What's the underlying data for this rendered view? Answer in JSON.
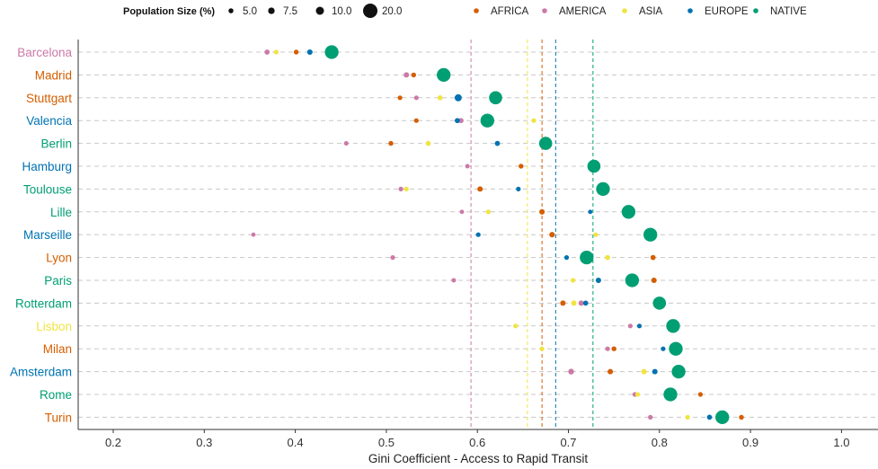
{
  "chart_data": {
    "type": "scatter",
    "xlabel": "Gini Coefficient - Access to Rapid Transit",
    "x_ticks": [
      "0.2",
      "0.3",
      "0.4",
      "0.5",
      "0.6",
      "0.7",
      "0.8",
      "0.9",
      "1.0"
    ],
    "xlim": [
      0.16,
      1.04
    ],
    "legend_position": "top",
    "size_legend": {
      "title": "Population Size (%)",
      "entries": [
        {
          "label": "5.0",
          "value": 5.0
        },
        {
          "label": "7.5",
          "value": 7.5
        },
        {
          "label": "10.0",
          "value": 10.0
        },
        {
          "label": "20.0",
          "value": 20.0
        }
      ]
    },
    "groups": [
      {
        "name": "AFRICA",
        "color": "#D55E00"
      },
      {
        "name": "AMERICA",
        "color": "#CC79A7"
      },
      {
        "name": "ASIA",
        "color": "#F0E442"
      },
      {
        "name": "EUROPE",
        "color": "#0072B2"
      },
      {
        "name": "NATIVE",
        "color": "#009E73"
      }
    ],
    "reference_lines": [
      {
        "group": "AMERICA",
        "x": 0.593
      },
      {
        "group": "ASIA",
        "x": 0.655
      },
      {
        "group": "AFRICA",
        "x": 0.671
      },
      {
        "group": "EUROPE",
        "x": 0.686
      },
      {
        "group": "NATIVE",
        "x": 0.727
      }
    ],
    "cities": [
      {
        "name": "Barcelona",
        "label_color": "#CC79A7",
        "points": {
          "AMERICA": [
            0.369,
            5.3
          ],
          "ASIA": [
            0.379,
            4.6
          ],
          "AFRICA": [
            0.401,
            4.9
          ],
          "EUROPE": [
            0.416,
            5.8
          ],
          "NATIVE": [
            0.44,
            19.0
          ]
        }
      },
      {
        "name": "Madrid",
        "label_color": "#D55E00",
        "points": {
          "AMERICA": [
            0.522,
            5.8
          ],
          "AFRICA": [
            0.53,
            4.9
          ],
          "NATIVE": [
            0.563,
            19.0
          ]
        }
      },
      {
        "name": "Stuttgart",
        "label_color": "#D55E00",
        "points": {
          "AFRICA": [
            0.515,
            4.6
          ],
          "AMERICA": [
            0.533,
            4.6
          ],
          "ASIA": [
            0.559,
            5.3
          ],
          "EUROPE": [
            0.579,
            8.4
          ],
          "NATIVE": [
            0.62,
            18.0
          ]
        }
      },
      {
        "name": "Valencia",
        "label_color": "#0072B2",
        "points": {
          "AFRICA": [
            0.533,
            4.6
          ],
          "EUROPE": [
            0.578,
            5.3
          ],
          "AMERICA": [
            0.582,
            5.3
          ],
          "ASIA": [
            0.662,
            4.6
          ],
          "NATIVE": [
            0.611,
            19.0
          ]
        }
      },
      {
        "name": "Berlin",
        "label_color": "#009E73",
        "points": {
          "AMERICA": [
            0.456,
            4.4
          ],
          "AFRICA": [
            0.505,
            4.9
          ],
          "ASIA": [
            0.546,
            5.3
          ],
          "EUROPE": [
            0.622,
            5.3
          ],
          "NATIVE": [
            0.675,
            18.0
          ]
        }
      },
      {
        "name": "Hamburg",
        "label_color": "#0072B2",
        "points": {
          "AMERICA": [
            0.589,
            4.4
          ],
          "AFRICA": [
            0.648,
            4.9
          ],
          "NATIVE": [
            0.728,
            18.0
          ]
        }
      },
      {
        "name": "Toulouse",
        "label_color": "#009E73",
        "points": {
          "AMERICA": [
            0.516,
            4.6
          ],
          "ASIA": [
            0.522,
            4.6
          ],
          "AFRICA": [
            0.603,
            5.8
          ],
          "EUROPE": [
            0.645,
            4.6
          ],
          "NATIVE": [
            0.738,
            19.0
          ]
        }
      },
      {
        "name": "Lille",
        "label_color": "#009E73",
        "points": {
          "AMERICA": [
            0.583,
            4.1
          ],
          "ASIA": [
            0.612,
            4.6
          ],
          "AFRICA": [
            0.671,
            5.8
          ],
          "EUROPE": [
            0.724,
            4.1
          ],
          "NATIVE": [
            0.766,
            19.0
          ]
        }
      },
      {
        "name": "Marseille",
        "label_color": "#0072B2",
        "points": {
          "AMERICA": [
            0.354,
            4.1
          ],
          "EUROPE": [
            0.601,
            4.6
          ],
          "AFRICA": [
            0.682,
            5.8
          ],
          "ASIA": [
            0.73,
            4.6
          ],
          "NATIVE": [
            0.79,
            19.0
          ]
        }
      },
      {
        "name": "Lyon",
        "label_color": "#D55E00",
        "points": {
          "AMERICA": [
            0.507,
            4.6
          ],
          "EUROPE": [
            0.698,
            4.6
          ],
          "ASIA": [
            0.743,
            5.3
          ],
          "AFRICA": [
            0.793,
            5.3
          ],
          "NATIVE": [
            0.72,
            19.0
          ]
        }
      },
      {
        "name": "Paris",
        "label_color": "#009E73",
        "points": {
          "AMERICA": [
            0.574,
            4.4
          ],
          "ASIA": [
            0.705,
            4.6
          ],
          "EUROPE": [
            0.733,
            5.8
          ],
          "AFRICA": [
            0.794,
            5.8
          ],
          "NATIVE": [
            0.77,
            19.0
          ]
        }
      },
      {
        "name": "Rotterdam",
        "label_color": "#009E73",
        "points": {
          "AFRICA": [
            0.694,
            5.8
          ],
          "ASIA": [
            0.706,
            5.8
          ],
          "AMERICA": [
            0.714,
            5.8
          ],
          "EUROPE": [
            0.719,
            5.3
          ],
          "NATIVE": [
            0.8,
            18.0
          ]
        }
      },
      {
        "name": "Lisbon",
        "label_color": "#F0E442",
        "points": {
          "ASIA": [
            0.642,
            4.6
          ],
          "AMERICA": [
            0.768,
            4.6
          ],
          "EUROPE": [
            0.778,
            4.6
          ],
          "NATIVE": [
            0.815,
            19.0
          ]
        }
      },
      {
        "name": "Milan",
        "label_color": "#D55E00",
        "points": {
          "ASIA": [
            0.671,
            4.6
          ],
          "AMERICA": [
            0.743,
            4.6
          ],
          "AFRICA": [
            0.75,
            4.9
          ],
          "EUROPE": [
            0.804,
            4.6
          ],
          "NATIVE": [
            0.818,
            19.0
          ]
        }
      },
      {
        "name": "Amsterdam",
        "label_color": "#0072B2",
        "points": {
          "AMERICA": [
            0.703,
            6.2
          ],
          "AFRICA": [
            0.746,
            5.8
          ],
          "ASIA": [
            0.783,
            5.8
          ],
          "EUROPE": [
            0.795,
            5.8
          ],
          "NATIVE": [
            0.821,
            19.0
          ]
        }
      },
      {
        "name": "Rome",
        "label_color": "#009E73",
        "points": {
          "AMERICA": [
            0.773,
            4.6
          ],
          "ASIA": [
            0.776,
            4.6
          ],
          "AFRICA": [
            0.845,
            4.6
          ],
          "NATIVE": [
            0.812,
            19.0
          ]
        }
      },
      {
        "name": "Turin",
        "label_color": "#D55E00",
        "points": {
          "AMERICA": [
            0.79,
            4.6
          ],
          "ASIA": [
            0.831,
            4.6
          ],
          "EUROPE": [
            0.855,
            5.3
          ],
          "AFRICA": [
            0.89,
            4.9
          ],
          "NATIVE": [
            0.869,
            19.0
          ]
        }
      }
    ]
  }
}
